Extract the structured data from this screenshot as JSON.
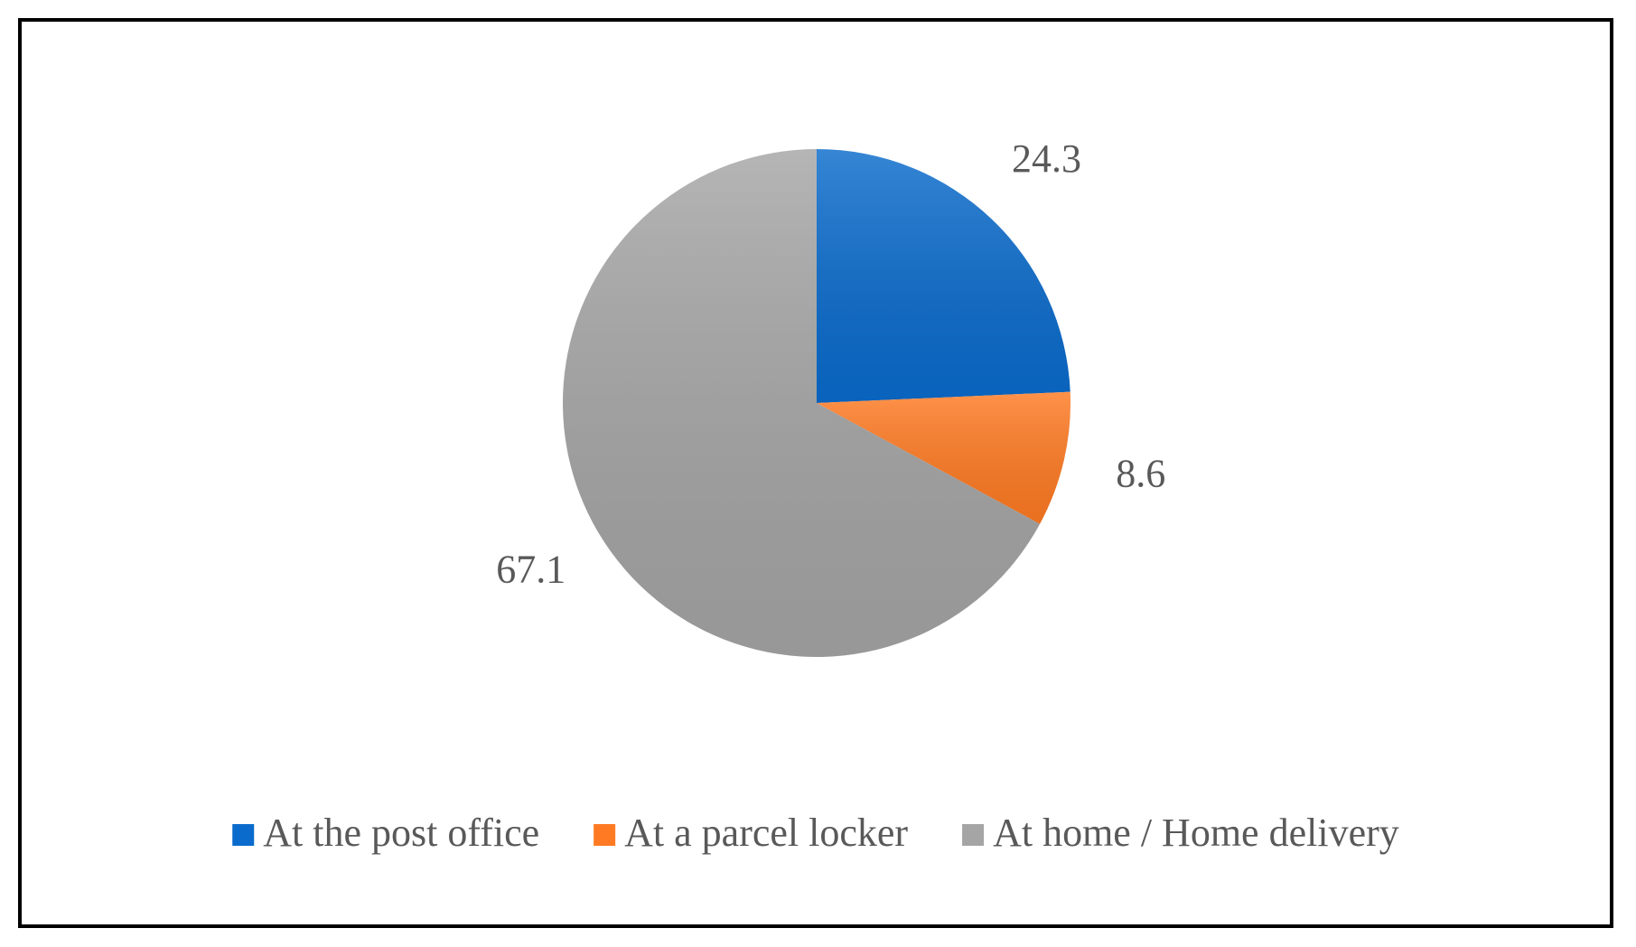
{
  "chart_data": {
    "type": "pie",
    "categories": [
      "At the post office",
      "At a parcel locker",
      "At home / Home delivery"
    ],
    "values": [
      24.3,
      8.6,
      67.1
    ],
    "colors": [
      "#0a6bcc",
      "#ff7a22",
      "#a5a5a5"
    ],
    "legend": "bottom"
  }
}
